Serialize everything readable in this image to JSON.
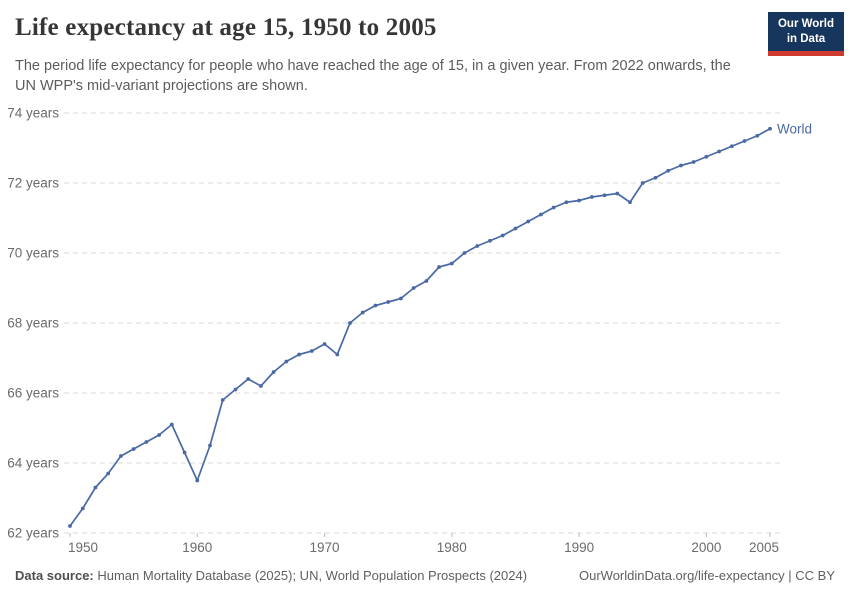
{
  "header": {
    "title": "Life expectancy at age 15, 1950 to 2005",
    "subtitle": "The period life expectancy for people who have reached the age of 15, in a given year. From 2022 onwards, the UN WPP's mid-variant projections are shown.",
    "logo": {
      "line1": "Our World",
      "line2": "in Data"
    }
  },
  "footer": {
    "source_label": "Data source:",
    "source_text": " Human Mortality Database (2025); UN, World Population Prospects (2024)",
    "credit": "OurWorldinData.org/life-expectancy | CC BY"
  },
  "colors": {
    "series_blue": "#4a69a5",
    "gridline": "#d9d9d9",
    "tick_mark": "#bbbbbb",
    "tick_label": "#6b6b6b",
    "logo_navy": "#17365d",
    "logo_red": "#cf3a30"
  },
  "chart_data": {
    "type": "line",
    "title": "Life expectancy at age 15, 1950 to 2005",
    "xlabel": "",
    "ylabel": "",
    "grid": "horizontal-dashed",
    "legend": "end-of-line-label",
    "end_label": "World",
    "xlim": [
      1950,
      2005
    ],
    "ylim": [
      62,
      74
    ],
    "x_ticks": [
      1950,
      1960,
      1970,
      1980,
      1990,
      2000,
      2005
    ],
    "y_ticks": [
      62,
      64,
      66,
      68,
      70,
      72,
      74
    ],
    "y_tick_suffix": " years",
    "series": [
      {
        "name": "World",
        "color": "#4a69a5",
        "x": [
          1950,
          1951,
          1952,
          1953,
          1954,
          1955,
          1956,
          1957,
          1958,
          1959,
          1960,
          1961,
          1962,
          1963,
          1964,
          1965,
          1966,
          1967,
          1968,
          1969,
          1970,
          1971,
          1972,
          1973,
          1974,
          1975,
          1976,
          1977,
          1978,
          1979,
          1980,
          1981,
          1982,
          1983,
          1984,
          1985,
          1986,
          1987,
          1988,
          1989,
          1990,
          1991,
          1992,
          1993,
          1994,
          1995,
          1996,
          1997,
          1998,
          1999,
          2000,
          2001,
          2002,
          2003,
          2004,
          2005
        ],
        "values": [
          62.2,
          62.7,
          63.3,
          63.7,
          64.2,
          64.4,
          64.6,
          64.8,
          65.1,
          64.3,
          63.5,
          64.5,
          65.8,
          66.1,
          66.4,
          66.2,
          66.6,
          66.9,
          67.1,
          67.2,
          67.4,
          67.1,
          68.0,
          68.3,
          68.5,
          68.6,
          68.7,
          69.0,
          69.2,
          69.6,
          69.7,
          70.0,
          70.2,
          70.35,
          70.5,
          70.7,
          70.9,
          71.1,
          71.3,
          71.45,
          71.5,
          71.6,
          71.65,
          71.7,
          71.45,
          72.0,
          72.15,
          72.35,
          72.5,
          72.6,
          72.75,
          72.9,
          73.05,
          73.2,
          73.35,
          73.55
        ]
      }
    ]
  }
}
